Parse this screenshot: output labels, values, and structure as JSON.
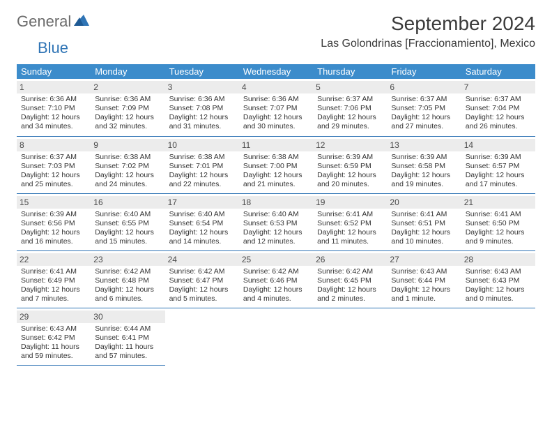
{
  "brand": {
    "general": "General",
    "blue": "Blue"
  },
  "title": "September 2024",
  "location": "Las Golondrinas [Fraccionamiento], Mexico",
  "colors": {
    "header_bg": "#3c8ccb",
    "header_text": "#ffffff",
    "border": "#2f74b5",
    "daynum_bg": "#ececec",
    "logo_gray": "#6b6b6b",
    "logo_blue": "#2f74b5"
  },
  "weekdays": [
    "Sunday",
    "Monday",
    "Tuesday",
    "Wednesday",
    "Thursday",
    "Friday",
    "Saturday"
  ],
  "weeks": [
    [
      {
        "n": "1",
        "sr": "Sunrise: 6:36 AM",
        "ss": "Sunset: 7:10 PM",
        "d1": "Daylight: 12 hours",
        "d2": "and 34 minutes."
      },
      {
        "n": "2",
        "sr": "Sunrise: 6:36 AM",
        "ss": "Sunset: 7:09 PM",
        "d1": "Daylight: 12 hours",
        "d2": "and 32 minutes."
      },
      {
        "n": "3",
        "sr": "Sunrise: 6:36 AM",
        "ss": "Sunset: 7:08 PM",
        "d1": "Daylight: 12 hours",
        "d2": "and 31 minutes."
      },
      {
        "n": "4",
        "sr": "Sunrise: 6:36 AM",
        "ss": "Sunset: 7:07 PM",
        "d1": "Daylight: 12 hours",
        "d2": "and 30 minutes."
      },
      {
        "n": "5",
        "sr": "Sunrise: 6:37 AM",
        "ss": "Sunset: 7:06 PM",
        "d1": "Daylight: 12 hours",
        "d2": "and 29 minutes."
      },
      {
        "n": "6",
        "sr": "Sunrise: 6:37 AM",
        "ss": "Sunset: 7:05 PM",
        "d1": "Daylight: 12 hours",
        "d2": "and 27 minutes."
      },
      {
        "n": "7",
        "sr": "Sunrise: 6:37 AM",
        "ss": "Sunset: 7:04 PM",
        "d1": "Daylight: 12 hours",
        "d2": "and 26 minutes."
      }
    ],
    [
      {
        "n": "8",
        "sr": "Sunrise: 6:37 AM",
        "ss": "Sunset: 7:03 PM",
        "d1": "Daylight: 12 hours",
        "d2": "and 25 minutes."
      },
      {
        "n": "9",
        "sr": "Sunrise: 6:38 AM",
        "ss": "Sunset: 7:02 PM",
        "d1": "Daylight: 12 hours",
        "d2": "and 24 minutes."
      },
      {
        "n": "10",
        "sr": "Sunrise: 6:38 AM",
        "ss": "Sunset: 7:01 PM",
        "d1": "Daylight: 12 hours",
        "d2": "and 22 minutes."
      },
      {
        "n": "11",
        "sr": "Sunrise: 6:38 AM",
        "ss": "Sunset: 7:00 PM",
        "d1": "Daylight: 12 hours",
        "d2": "and 21 minutes."
      },
      {
        "n": "12",
        "sr": "Sunrise: 6:39 AM",
        "ss": "Sunset: 6:59 PM",
        "d1": "Daylight: 12 hours",
        "d2": "and 20 minutes."
      },
      {
        "n": "13",
        "sr": "Sunrise: 6:39 AM",
        "ss": "Sunset: 6:58 PM",
        "d1": "Daylight: 12 hours",
        "d2": "and 19 minutes."
      },
      {
        "n": "14",
        "sr": "Sunrise: 6:39 AM",
        "ss": "Sunset: 6:57 PM",
        "d1": "Daylight: 12 hours",
        "d2": "and 17 minutes."
      }
    ],
    [
      {
        "n": "15",
        "sr": "Sunrise: 6:39 AM",
        "ss": "Sunset: 6:56 PM",
        "d1": "Daylight: 12 hours",
        "d2": "and 16 minutes."
      },
      {
        "n": "16",
        "sr": "Sunrise: 6:40 AM",
        "ss": "Sunset: 6:55 PM",
        "d1": "Daylight: 12 hours",
        "d2": "and 15 minutes."
      },
      {
        "n": "17",
        "sr": "Sunrise: 6:40 AM",
        "ss": "Sunset: 6:54 PM",
        "d1": "Daylight: 12 hours",
        "d2": "and 14 minutes."
      },
      {
        "n": "18",
        "sr": "Sunrise: 6:40 AM",
        "ss": "Sunset: 6:53 PM",
        "d1": "Daylight: 12 hours",
        "d2": "and 12 minutes."
      },
      {
        "n": "19",
        "sr": "Sunrise: 6:41 AM",
        "ss": "Sunset: 6:52 PM",
        "d1": "Daylight: 12 hours",
        "d2": "and 11 minutes."
      },
      {
        "n": "20",
        "sr": "Sunrise: 6:41 AM",
        "ss": "Sunset: 6:51 PM",
        "d1": "Daylight: 12 hours",
        "d2": "and 10 minutes."
      },
      {
        "n": "21",
        "sr": "Sunrise: 6:41 AM",
        "ss": "Sunset: 6:50 PM",
        "d1": "Daylight: 12 hours",
        "d2": "and 9 minutes."
      }
    ],
    [
      {
        "n": "22",
        "sr": "Sunrise: 6:41 AM",
        "ss": "Sunset: 6:49 PM",
        "d1": "Daylight: 12 hours",
        "d2": "and 7 minutes."
      },
      {
        "n": "23",
        "sr": "Sunrise: 6:42 AM",
        "ss": "Sunset: 6:48 PM",
        "d1": "Daylight: 12 hours",
        "d2": "and 6 minutes."
      },
      {
        "n": "24",
        "sr": "Sunrise: 6:42 AM",
        "ss": "Sunset: 6:47 PM",
        "d1": "Daylight: 12 hours",
        "d2": "and 5 minutes."
      },
      {
        "n": "25",
        "sr": "Sunrise: 6:42 AM",
        "ss": "Sunset: 6:46 PM",
        "d1": "Daylight: 12 hours",
        "d2": "and 4 minutes."
      },
      {
        "n": "26",
        "sr": "Sunrise: 6:42 AM",
        "ss": "Sunset: 6:45 PM",
        "d1": "Daylight: 12 hours",
        "d2": "and 2 minutes."
      },
      {
        "n": "27",
        "sr": "Sunrise: 6:43 AM",
        "ss": "Sunset: 6:44 PM",
        "d1": "Daylight: 12 hours",
        "d2": "and 1 minute."
      },
      {
        "n": "28",
        "sr": "Sunrise: 6:43 AM",
        "ss": "Sunset: 6:43 PM",
        "d1": "Daylight: 12 hours",
        "d2": "and 0 minutes."
      }
    ],
    [
      {
        "n": "29",
        "sr": "Sunrise: 6:43 AM",
        "ss": "Sunset: 6:42 PM",
        "d1": "Daylight: 11 hours",
        "d2": "and 59 minutes."
      },
      {
        "n": "30",
        "sr": "Sunrise: 6:44 AM",
        "ss": "Sunset: 6:41 PM",
        "d1": "Daylight: 11 hours",
        "d2": "and 57 minutes."
      },
      null,
      null,
      null,
      null,
      null
    ]
  ]
}
